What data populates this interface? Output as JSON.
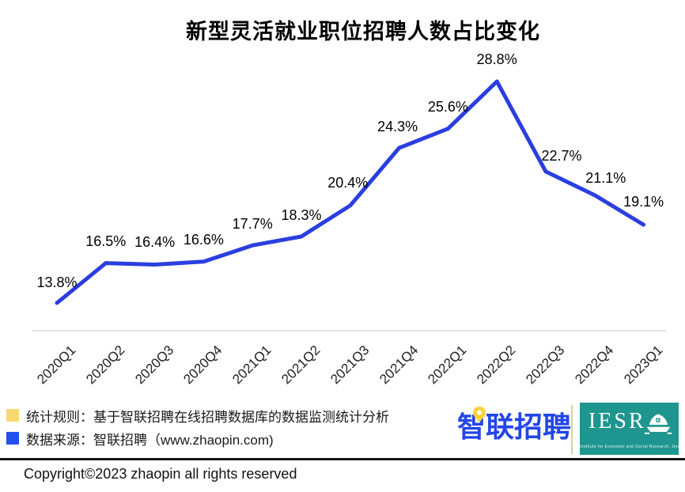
{
  "title": "新型灵活就业职位招聘人数占比变化",
  "chart_data": {
    "type": "line",
    "title": "新型灵活就业职位招聘人数占比变化",
    "categories": [
      "2020Q1",
      "2020Q2",
      "2020Q3",
      "2020Q4",
      "2021Q1",
      "2021Q2",
      "2021Q3",
      "2021Q4",
      "2022Q1",
      "2022Q2",
      "2022Q3",
      "2022Q4",
      "2023Q1"
    ],
    "values": [
      13.8,
      16.5,
      16.4,
      16.6,
      17.7,
      18.3,
      20.4,
      24.3,
      25.6,
      28.8,
      22.7,
      21.1,
      19.1
    ],
    "point_labels": [
      "13.8%",
      "16.5%",
      "16.4%",
      "16.6%",
      "17.7%",
      "18.3%",
      "20.4%",
      "24.3%",
      "25.6%",
      "28.8%",
      "22.7%",
      "21.1%",
      "19.1%"
    ],
    "unit": "%",
    "xlabel": "",
    "ylabel": "",
    "ylim": [
      13,
      30
    ],
    "grid": false,
    "legend_position": "none",
    "line_color": "#2B3EDF",
    "axis_color": "#D9D9D9",
    "label_offsets": {
      "dx": [
        0,
        0,
        0,
        0,
        0,
        0,
        -3,
        -2,
        0,
        0,
        20,
        14,
        0
      ],
      "dy": [
        -26,
        -28,
        -28,
        -28,
        -27,
        -27,
        -29,
        -27,
        -28,
        -28,
        -20,
        -22,
        -29
      ]
    }
  },
  "footer": {
    "notes": [
      {
        "swatch_color": "#F8D873",
        "text": "统计规则：基于智联招聘在线招聘数据库的数据监测统计分析"
      },
      {
        "swatch_color": "#2450F0",
        "text": "数据来源：智联招聘（www.zhaopin.com)"
      }
    ],
    "zhaopin_logo": "智联招聘",
    "zhaopin_brand_blue": "#2346E6",
    "zhaopin_pin_yellow": "#FFD234",
    "iesr_logo": "IESR",
    "iesr_caption": "Institute for Economic and Social Research, Jinan University",
    "iesr_teal": "#1E968F",
    "copyright": "Copyright©2023 zhaopin all rights reserved"
  }
}
